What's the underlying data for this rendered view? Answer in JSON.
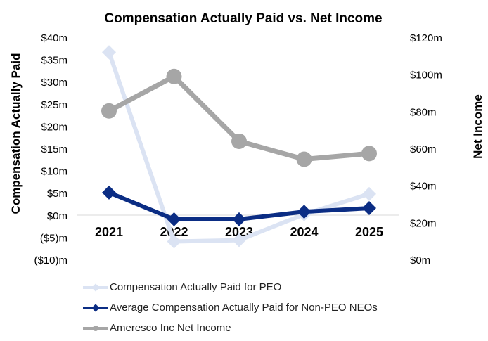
{
  "chart_data": {
    "type": "line",
    "title": "Compensation Actually Paid vs. Net Income",
    "categories": [
      "2021",
      "2022",
      "2023",
      "2024",
      "2025"
    ],
    "y_left": {
      "label": "Compensation Actually Paid",
      "range": [
        -10,
        40
      ],
      "ticks": [
        {
          "value": 40,
          "label": "$40m"
        },
        {
          "value": 35,
          "label": "$35m"
        },
        {
          "value": 30,
          "label": "$30m"
        },
        {
          "value": 25,
          "label": "$25m"
        },
        {
          "value": 20,
          "label": "$20m"
        },
        {
          "value": 15,
          "label": "$15m"
        },
        {
          "value": 10,
          "label": "$10m"
        },
        {
          "value": 5,
          "label": "$5m"
        },
        {
          "value": 0,
          "label": "$0m"
        },
        {
          "value": -5,
          "label": "($5)m"
        },
        {
          "value": -10,
          "label": "($10)m"
        }
      ]
    },
    "y_right": {
      "label": "Net Income",
      "range": [
        0,
        120
      ],
      "ticks": [
        {
          "value": 120,
          "label": "$120m"
        },
        {
          "value": 100,
          "label": "$100m"
        },
        {
          "value": 80,
          "label": "$80m"
        },
        {
          "value": 60,
          "label": "$60m"
        },
        {
          "value": 40,
          "label": "$40m"
        },
        {
          "value": 20,
          "label": "$20m"
        },
        {
          "value": 0,
          "label": "$0m"
        }
      ]
    },
    "series": [
      {
        "name": "Compensation Actually Paid for PEO",
        "axis": "left",
        "color": "#dbe3f3",
        "marker": "diamond",
        "values": [
          36.8,
          -5.8,
          -5.5,
          0.3,
          4.9
        ]
      },
      {
        "name": "Average Compensation Actually Paid for Non-PEO NEOs",
        "axis": "left",
        "color": "#0b2d84",
        "marker": "diamond",
        "values": [
          5.2,
          -0.8,
          -0.8,
          0.9,
          1.7
        ]
      },
      {
        "name": "Ameresco Inc Net Income",
        "axis": "right",
        "color": "#a6a6a6",
        "marker": "circle",
        "values": [
          80.6,
          99.2,
          64.2,
          54.5,
          57.6
        ]
      }
    ],
    "legend_position": "bottom",
    "grid": false
  }
}
